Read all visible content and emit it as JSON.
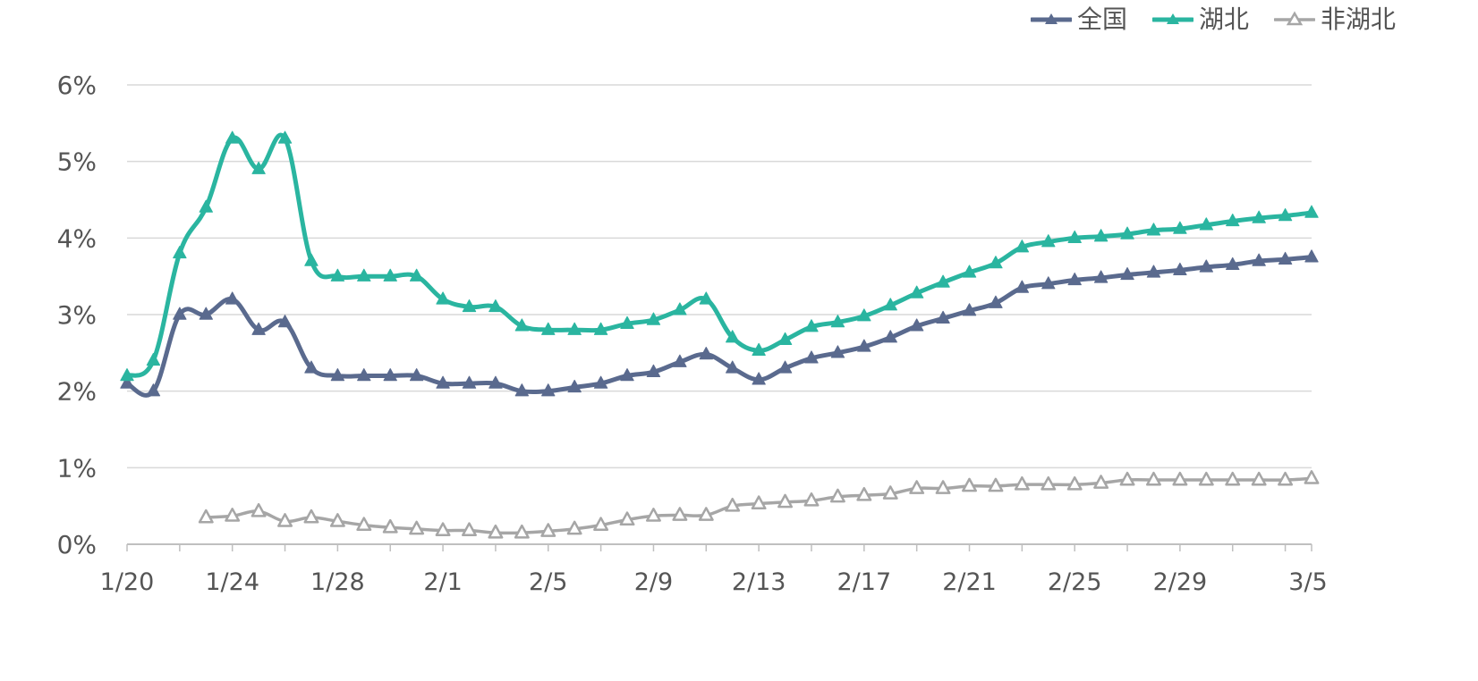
{
  "chart_data": {
    "type": "line",
    "title": "",
    "xlabel": "",
    "ylabel": "",
    "x": [
      "1/20",
      "1/21",
      "1/22",
      "1/23",
      "1/24",
      "1/25",
      "1/26",
      "1/27",
      "1/28",
      "1/29",
      "1/30",
      "1/31",
      "2/1",
      "2/2",
      "2/3",
      "2/4",
      "2/5",
      "2/6",
      "2/7",
      "2/8",
      "2/9",
      "2/10",
      "2/11",
      "2/12",
      "2/13",
      "2/14",
      "2/15",
      "2/16",
      "2/17",
      "2/18",
      "2/19",
      "2/20",
      "2/21",
      "2/22",
      "2/23",
      "2/24",
      "2/25",
      "2/26",
      "2/27",
      "2/28",
      "2/29",
      "3/1",
      "3/2",
      "3/3",
      "3/4",
      "3/5"
    ],
    "x_tick_labels": [
      "1/20",
      "1/24",
      "1/28",
      "2/1",
      "2/5",
      "2/9",
      "2/13",
      "2/17",
      "2/21",
      "2/25",
      "2/29",
      "3/5"
    ],
    "y_tick_labels": [
      "0%",
      "1%",
      "2%",
      "3%",
      "4%",
      "5%",
      "6%"
    ],
    "ylim": [
      0,
      6
    ],
    "grid": true,
    "legend_position": "top-right",
    "series": [
      {
        "name": "全国",
        "color": "#5a6a8e",
        "marker": "filled-triangle",
        "values": [
          2.1,
          2.0,
          3.0,
          3.0,
          3.2,
          2.8,
          2.9,
          2.3,
          2.2,
          2.2,
          2.2,
          2.2,
          2.1,
          2.1,
          2.1,
          2.0,
          2.0,
          2.05,
          2.1,
          2.2,
          2.25,
          2.38,
          2.48,
          2.3,
          2.15,
          2.3,
          2.43,
          2.5,
          2.58,
          2.7,
          2.85,
          2.95,
          3.05,
          3.15,
          3.35,
          3.4,
          3.45,
          3.48,
          3.52,
          3.55,
          3.58,
          3.62,
          3.65,
          3.7,
          3.72,
          3.75
        ]
      },
      {
        "name": "湖北",
        "color": "#2ab5a0",
        "marker": "filled-triangle",
        "values": [
          2.2,
          2.4,
          3.8,
          4.4,
          5.3,
          4.9,
          5.3,
          3.7,
          3.5,
          3.5,
          3.5,
          3.5,
          3.2,
          3.1,
          3.1,
          2.85,
          2.8,
          2.8,
          2.8,
          2.88,
          2.93,
          3.06,
          3.2,
          2.7,
          2.53,
          2.67,
          2.84,
          2.9,
          2.98,
          3.12,
          3.28,
          3.42,
          3.55,
          3.67,
          3.88,
          3.95,
          4.0,
          4.02,
          4.05,
          4.1,
          4.12,
          4.17,
          4.22,
          4.26,
          4.29,
          4.33
        ]
      },
      {
        "name": "非湖北",
        "color": "#a6a6a6",
        "marker": "hollow-triangle",
        "values": [
          null,
          null,
          null,
          0.35,
          0.37,
          0.43,
          0.3,
          0.35,
          0.3,
          0.25,
          0.22,
          0.2,
          0.18,
          0.18,
          0.15,
          0.15,
          0.17,
          0.2,
          0.25,
          0.32,
          0.37,
          0.38,
          0.38,
          0.5,
          0.53,
          0.55,
          0.57,
          0.62,
          0.64,
          0.66,
          0.73,
          0.73,
          0.76,
          0.76,
          0.78,
          0.78,
          0.78,
          0.8,
          0.84,
          0.84,
          0.84,
          0.84,
          0.84,
          0.84,
          0.84,
          0.86
        ]
      }
    ]
  }
}
